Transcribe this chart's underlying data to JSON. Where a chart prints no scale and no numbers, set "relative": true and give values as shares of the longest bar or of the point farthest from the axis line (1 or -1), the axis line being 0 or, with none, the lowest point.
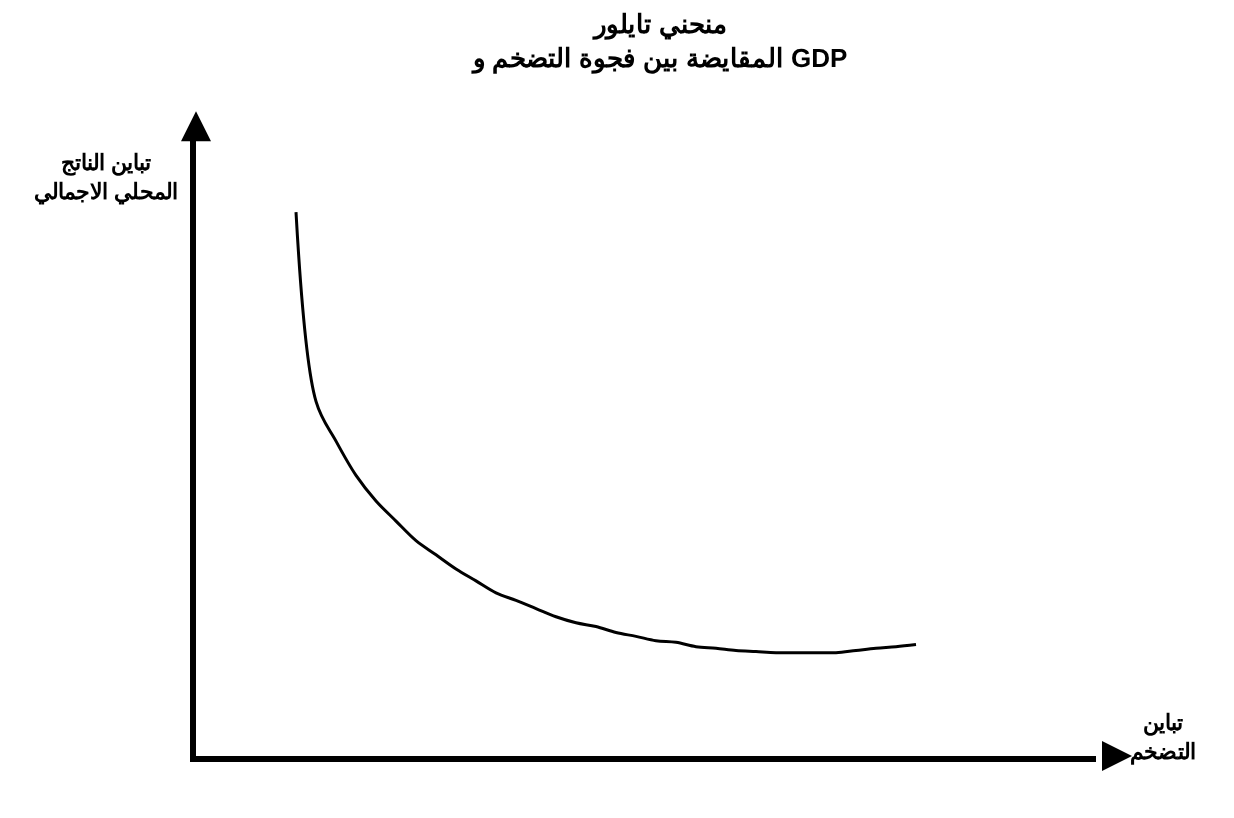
{
  "chart_data": {
    "type": "line",
    "title": "منحني تايلور",
    "subtitle": "المقايضة بين فجوة التضخم و GDP",
    "xlabel": "تباين\nالتضخم",
    "ylabel": "تباين الناتج\nالمحلي الاجمالي",
    "relative": true,
    "color": "#000000",
    "marker": "none",
    "line_style": "solid",
    "categories": [
      null,
      null,
      null,
      null,
      null,
      null,
      null,
      null,
      null,
      null,
      null,
      null,
      null,
      null,
      null,
      null,
      null,
      null,
      null,
      null,
      null,
      null,
      null,
      null,
      null,
      null,
      null,
      null,
      null,
      null,
      null,
      null,
      null,
      null,
      null,
      null,
      null,
      null,
      null,
      null,
      null,
      null,
      null,
      null,
      null,
      null
    ],
    "values": [
      null,
      null,
      null,
      null,
      null,
      1.0,
      0.652,
      0.579,
      0.516,
      0.469,
      0.432,
      0.396,
      0.37,
      0.344,
      0.322,
      0.3,
      0.286,
      0.271,
      0.256,
      0.245,
      0.238,
      0.227,
      0.22,
      0.212,
      0.209,
      0.201,
      0.198,
      0.194,
      0.192,
      0.19,
      0.19,
      0.19,
      0.19,
      0.194,
      0.198,
      0.201,
      0.205,
      null,
      null,
      null,
      null,
      null,
      null,
      null,
      null,
      null
    ]
  }
}
